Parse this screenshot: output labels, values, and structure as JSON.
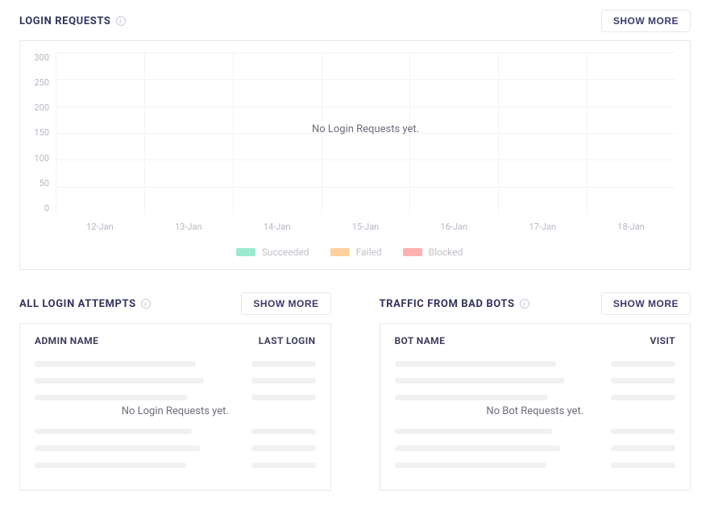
{
  "colors": {
    "text_primary": "#32325c",
    "text_muted": "#b6b6c2",
    "border": "#e6e6ef",
    "gridline": "#f3f3f6",
    "skeleton": "#f1f1f4",
    "background": "#ffffff"
  },
  "login_requests": {
    "title": "LOGIN REQUESTS",
    "show_more_label": "SHOW MORE",
    "chart": {
      "type": "bar",
      "ylim": [
        0,
        300
      ],
      "ytick_step": 50,
      "yticks": [
        "300",
        "250",
        "200",
        "150",
        "100",
        "50",
        "0"
      ],
      "xticks": [
        "12-Jan",
        "13-Jan",
        "14-Jan",
        "15-Jan",
        "16-Jan",
        "17-Jan",
        "18-Jan"
      ],
      "empty_message": "No Login Requests yet.",
      "background_color": "#ffffff",
      "grid_color": "#f3f3f6",
      "axis_label_color": "#b6b6c2",
      "axis_label_fontsize": 11,
      "legend": [
        {
          "label": "Succeeded",
          "color": "#9beacf"
        },
        {
          "label": "Failed",
          "color": "#ffd19b"
        },
        {
          "label": "Blocked",
          "color": "#ffb0b0"
        }
      ]
    }
  },
  "login_attempts": {
    "title": "ALL LOGIN ATTEMPTS",
    "show_more_label": "SHOW MORE",
    "columns": {
      "name": "ADMIN NAME",
      "last": "LAST LOGIN"
    },
    "empty_message": "No Login Requests yet.",
    "skeleton_row_count": 7
  },
  "bad_bots": {
    "title": "TRAFFIC FROM BAD BOTS",
    "show_more_label": "SHOW MORE",
    "columns": {
      "name": "BOT NAME",
      "last": "VISIT"
    },
    "empty_message": "No Bot Requests yet.",
    "skeleton_row_count": 7
  }
}
